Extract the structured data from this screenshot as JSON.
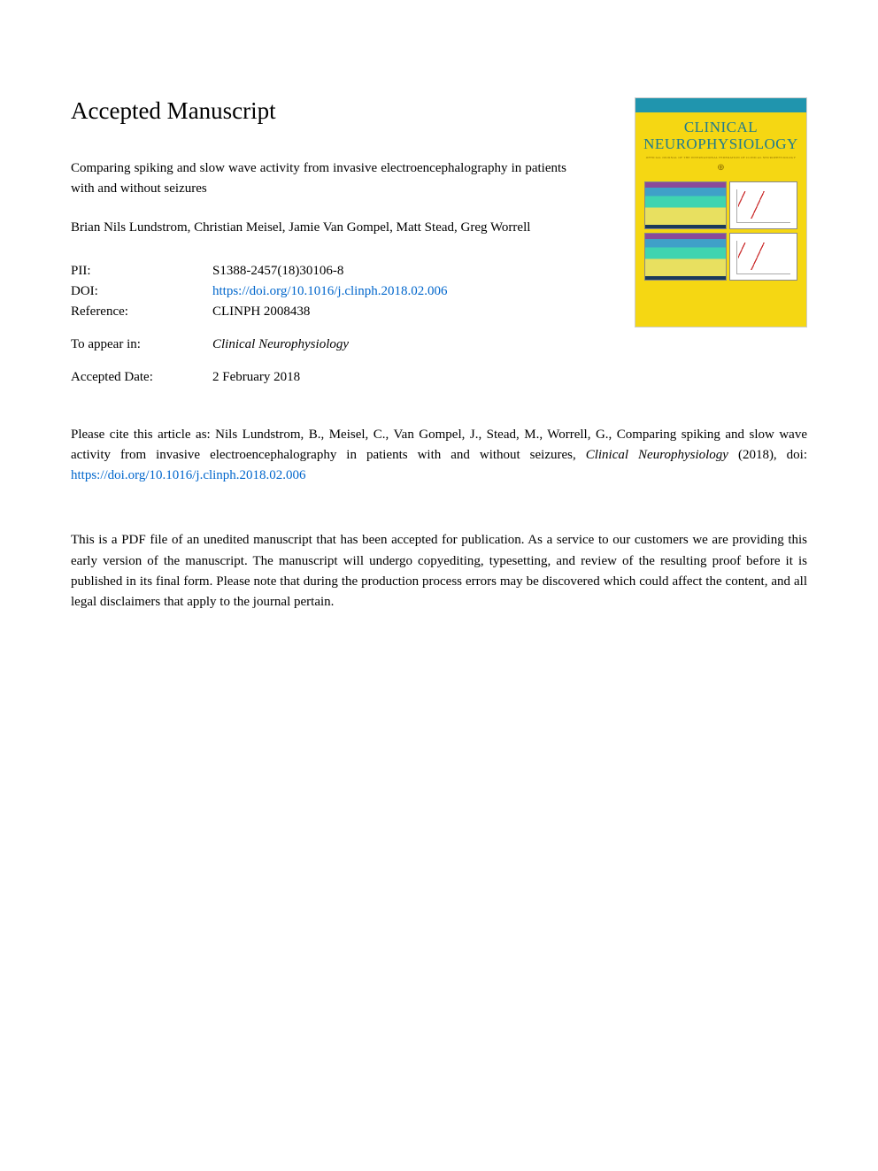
{
  "header": {
    "heading": "Accepted Manuscript"
  },
  "article": {
    "title": "Comparing spiking and slow wave activity from invasive electroencephalography in patients with and without seizures",
    "authors": "Brian Nils Lundstrom, Christian Meisel, Jamie Van Gompel, Matt Stead, Greg Worrell"
  },
  "meta": {
    "pii_label": "PII:",
    "pii_value": "S1388-2457(18)30106-8",
    "doi_label": "DOI:",
    "doi_value": "https://doi.org/10.1016/j.clinph.2018.02.006",
    "ref_label": "Reference:",
    "ref_value": "CLINPH 2008438",
    "appear_label": "To appear in:",
    "appear_value": "Clinical Neurophysiology",
    "accepted_label": "Accepted Date:",
    "accepted_value": "2 February 2018"
  },
  "cover": {
    "journal_line1": "CLINICAL",
    "journal_line2": "NEUROPHYSIOLOGY",
    "subtitle": "OFFICIAL JOURNAL OF THE INTERNATIONAL FEDERATION OF CLINICAL NEUROPHYSIOLOGY"
  },
  "citation": {
    "prefix": "Please cite this article as: Nils Lundstrom, B., Meisel, C., Van Gompel, J., Stead, M., Worrell, G., Comparing spiking and slow wave activity from invasive electroencephalography in patients with and without seizures, ",
    "journal": "Clinical Neurophysiology",
    "year": " (2018), doi: ",
    "doi": "https://doi.org/10.1016/j.clinph.2018.02.006"
  },
  "disclaimer": {
    "text": "This is a PDF file of an unedited manuscript that has been accepted for publication. As a service to our customers we are providing this early version of the manuscript. The manuscript will undergo copyediting, typesetting, and review of the resulting proof before it is published in its final form. Please note that during the production process errors may be discovered which could affect the content, and all legal disclaimers that apply to the journal pertain."
  },
  "colors": {
    "link": "#0066cc",
    "cover_top": "#2095ae",
    "cover_bg": "#f5d713",
    "cover_title": "#1e7a8f"
  }
}
